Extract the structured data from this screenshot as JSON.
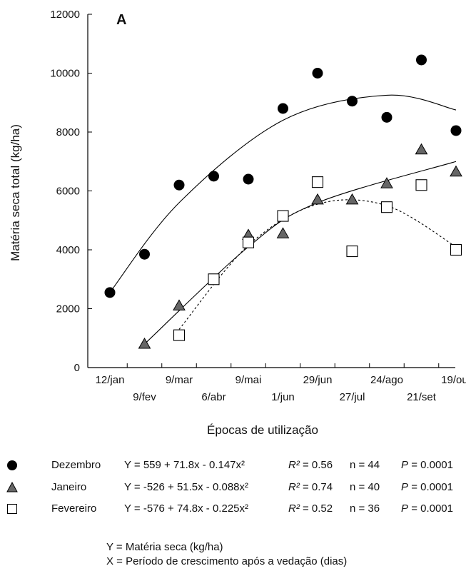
{
  "chart_data": {
    "type": "scatter",
    "panel_label": "A",
    "xlabel": "Épocas de utilização",
    "ylabel": "Matéria seca total (kg/ha)",
    "ylim": [
      0,
      12000
    ],
    "yticks": [
      0,
      2000,
      4000,
      6000,
      8000,
      10000,
      12000
    ],
    "x_categories": [
      "12/jan",
      "9/fev",
      "9/mar",
      "6/abr",
      "9/mai",
      "1/jun",
      "29/jun",
      "27/jul",
      "24/ago",
      "21/set",
      "19/out"
    ],
    "series": [
      {
        "name": "Dezembro",
        "marker": "circle-filled",
        "color": "#000000",
        "points": [
          {
            "x": "12/jan",
            "y": 2550
          },
          {
            "x": "9/fev",
            "y": 3850
          },
          {
            "x": "9/mar",
            "y": 6200
          },
          {
            "x": "6/abr",
            "y": 6500
          },
          {
            "x": "9/mai",
            "y": 6400
          },
          {
            "x": "1/jun",
            "y": 8800
          },
          {
            "x": "29/jun",
            "y": 10000
          },
          {
            "x": "27/jul",
            "y": 9050
          },
          {
            "x": "24/ago",
            "y": 8500
          },
          {
            "x": "21/set",
            "y": 10450
          },
          {
            "x": "19/out",
            "y": 8050
          }
        ],
        "fit_line": "solid"
      },
      {
        "name": "Janeiro",
        "marker": "triangle-filled",
        "color": "#666666",
        "points": [
          {
            "x": "9/fev",
            "y": 800
          },
          {
            "x": "9/mar",
            "y": 2100
          },
          {
            "x": "9/mai",
            "y": 4500
          },
          {
            "x": "1/jun",
            "y": 4550
          },
          {
            "x": "29/jun",
            "y": 5700
          },
          {
            "x": "27/jul",
            "y": 5700
          },
          {
            "x": "24/ago",
            "y": 6250
          },
          {
            "x": "21/set",
            "y": 7400
          },
          {
            "x": "19/out",
            "y": 6650
          }
        ],
        "fit_line": "solid"
      },
      {
        "name": "Fevereiro",
        "marker": "square-open",
        "color": "#000000",
        "points": [
          {
            "x": "9/mar",
            "y": 1100
          },
          {
            "x": "6/abr",
            "y": 3000
          },
          {
            "x": "9/mai",
            "y": 4250
          },
          {
            "x": "1/jun",
            "y": 5150
          },
          {
            "x": "29/jun",
            "y": 6300
          },
          {
            "x": "27/jul",
            "y": 3950
          },
          {
            "x": "24/ago",
            "y": 5450
          },
          {
            "x": "21/set",
            "y": 6200
          },
          {
            "x": "19/out",
            "y": 4000
          }
        ],
        "fit_line": "dashed"
      }
    ],
    "fit_curves": [
      {
        "series": "Dezembro",
        "style": "solid",
        "x": [
          "12/jan",
          "9/mar",
          "1/jun",
          "24/ago",
          "19/out"
        ],
        "y": [
          2550,
          5600,
          8400,
          9250,
          8750
        ]
      },
      {
        "series": "Janeiro",
        "style": "solid",
        "x": [
          "9/fev",
          "9/mai",
          "29/jun",
          "19/out"
        ],
        "y": [
          800,
          4100,
          5600,
          7000
        ]
      },
      {
        "series": "Fevereiro",
        "style": "dashed",
        "x": [
          "9/mar",
          "9/mai",
          "29/jun",
          "24/ago",
          "19/out"
        ],
        "y": [
          1300,
          4150,
          5550,
          5500,
          4100
        ]
      }
    ],
    "legend": [
      {
        "name": "Dezembro",
        "equation": "Y =  559 + 71.8x - 0.147x²",
        "r2_label": "R²",
        "r2_value": "= 0.56",
        "n": "n = 44",
        "p_label": "P",
        "p_value": "= 0.0001"
      },
      {
        "name": "Janeiro",
        "equation": "Y = -526 + 51.5x - 0.088x²",
        "r2_label": "R²",
        "r2_value": "= 0.74",
        "n": "n = 40",
        "p_label": "P",
        "p_value": "= 0.0001"
      },
      {
        "name": "Fevereiro",
        "equation": "Y = -576 + 74.8x - 0.225x²",
        "r2_label": "R²",
        "r2_value": "= 0.52",
        "n": "n = 36",
        "p_label": "P",
        "p_value": "= 0.0001"
      }
    ],
    "notes": [
      "Y = Matéria seca (kg/ha)",
      "X = Período de crescimento após a vedação (dias)"
    ]
  }
}
